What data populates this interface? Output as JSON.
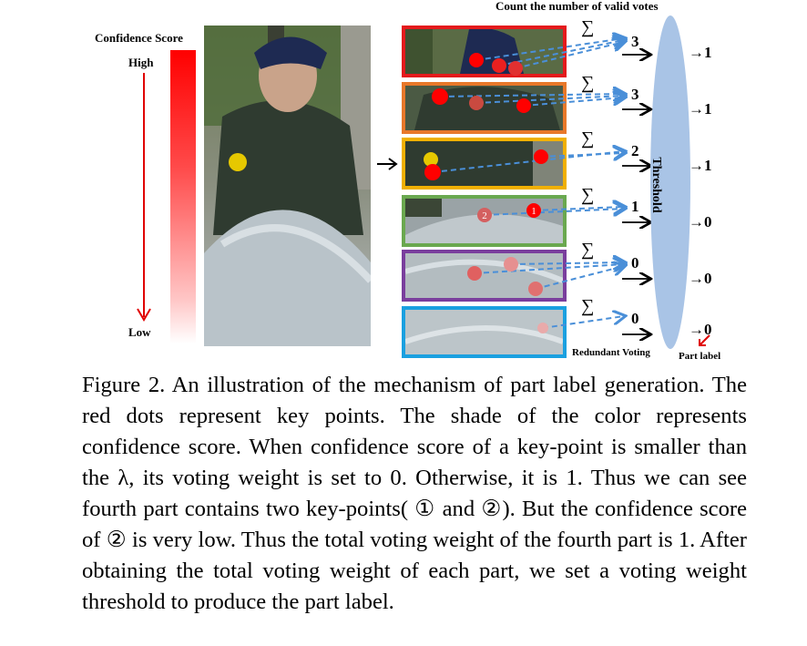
{
  "figure": {
    "confidence_label": "Confidence Score",
    "high_label": "High",
    "low_label": "Low",
    "count_title": "Count the number of valid votes",
    "sum_symbol": "∑",
    "vote_counts": [
      "3",
      "3",
      "2",
      "1",
      "0",
      "0"
    ],
    "part_labels": [
      "→1",
      "→1",
      "→1",
      "→0",
      "→0",
      "→0"
    ],
    "threshold_label": "Threshold",
    "redundant_voting_label": "Redundant Voting",
    "part_label_caption": "Part label",
    "keypoint_1": "1",
    "keypoint_2": "2",
    "strip_colors": [
      "#e41a1c",
      "#e8782a",
      "#f0b000",
      "#6aa84f",
      "#7a3e9d",
      "#1aa0e0"
    ]
  },
  "caption": {
    "text": "Figure 2. An illustration of the mechanism of part label generation. The red dots represent key points. The shade of the color represents confidence score. When confidence score of a key-point is smaller than the λ, its voting weight is set to 0. Otherwise, it is 1. Thus we can see fourth part contains two key-points( ① and ②). But the confidence score of ② is very low. Thus the total voting weight of the fourth part is 1. After obtaining the total voting weight of each part, we set a voting weight threshold to produce the part label."
  }
}
